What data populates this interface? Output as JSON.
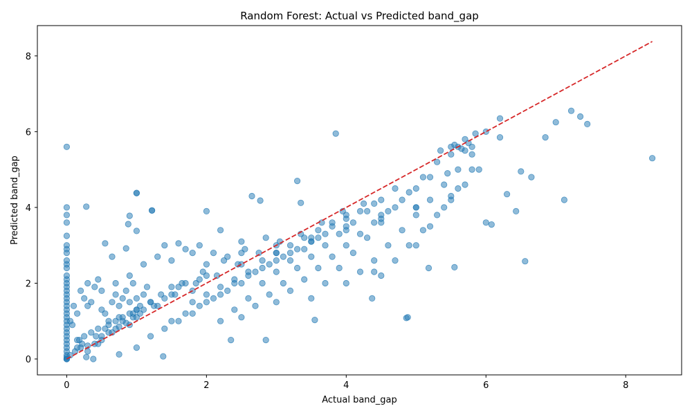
{
  "chart_data": {
    "type": "scatter",
    "title": "Random Forest: Actual vs Predicted band_gap",
    "xlabel": "Actual band_gap",
    "ylabel": "Predicted band_gap",
    "xlim": [
      -0.42,
      8.8
    ],
    "ylim": [
      -0.42,
      8.8
    ],
    "xticks": [
      0,
      2,
      4,
      6,
      8
    ],
    "yticks": [
      0,
      2,
      4,
      6,
      8
    ],
    "grid": false,
    "point_color": "#1f77b4",
    "line_color": "#d62728",
    "reference_line": {
      "x": [
        0,
        8.38
      ],
      "y": [
        0,
        8.38
      ],
      "style": "dashed"
    },
    "series": [
      {
        "x": [
          0,
          0,
          0,
          0,
          0,
          0,
          0,
          0,
          0,
          0,
          0,
          0,
          0,
          0,
          0,
          0,
          0,
          0,
          0,
          0,
          0,
          0,
          0,
          0,
          0,
          0,
          0,
          0,
          0,
          0,
          0,
          0,
          0,
          0,
          0,
          0,
          0,
          0.05,
          0.08,
          0.12,
          0.15,
          0.18,
          0.22,
          0.25,
          0.28,
          0.3,
          0.35,
          0.38,
          0.42,
          0.45,
          0.5,
          0.55,
          0.6,
          0.65,
          0.7,
          0.75,
          0.8,
          0.85,
          0.9,
          0.95,
          1.0,
          0.05,
          0.1,
          0.15,
          0.2,
          0.25,
          0.3,
          0.35,
          0.4,
          0.45,
          0.5,
          0.55,
          0.6,
          0.65,
          0.7,
          0.75,
          0.8,
          0.85,
          0.9,
          0.95,
          1.0,
          1.05,
          1.1,
          1.15,
          1.2,
          0.2,
          0.3,
          0.4,
          0.5,
          0.6,
          0.7,
          0.8,
          0.9,
          1.0,
          1.1,
          1.2,
          1.3,
          1.4,
          1.5,
          1.6,
          1.7,
          1.8,
          1.9,
          0.3,
          0.5,
          0.7,
          0.9,
          1.1,
          1.3,
          1.5,
          1.7,
          1.9,
          2.1,
          2.3,
          2.5,
          0.55,
          0.65,
          0.85,
          1.0,
          1.0,
          1.22,
          0.88,
          1.4,
          1.6,
          1.8,
          2.0,
          2.2,
          1.0,
          1.2,
          1.4,
          1.6,
          1.8,
          2.0,
          2.2,
          2.4,
          2.6,
          2.8,
          3.0,
          3.2,
          1.5,
          1.7,
          1.9,
          2.1,
          2.3,
          2.5,
          2.7,
          2.9,
          3.1,
          3.3,
          3.5,
          3.7,
          1.8,
          2.0,
          2.2,
          2.4,
          2.6,
          2.8,
          3.0,
          3.2,
          3.4,
          3.6,
          3.8,
          4.0,
          2.2,
          2.4,
          2.6,
          2.8,
          3.0,
          3.2,
          3.4,
          3.6,
          3.8,
          4.0,
          4.2,
          4.4,
          2.5,
          2.7,
          2.9,
          3.1,
          3.3,
          3.5,
          3.7,
          3.9,
          4.1,
          4.3,
          4.5,
          4.7,
          3.0,
          3.2,
          3.4,
          3.6,
          3.8,
          4.0,
          4.2,
          4.4,
          4.6,
          4.8,
          5.0,
          5.2,
          3.5,
          3.7,
          3.9,
          4.1,
          4.3,
          4.5,
          4.7,
          4.9,
          5.1,
          5.3,
          5.5,
          5.7,
          4.0,
          4.2,
          4.4,
          4.6,
          4.8,
          5.0,
          5.2,
          5.4,
          5.6,
          5.8,
          4.5,
          4.7,
          4.9,
          5.1,
          5.3,
          5.5,
          5.7,
          5.9,
          5.0,
          5.2,
          5.4,
          5.6,
          5.8,
          6.0,
          6.2,
          5.5,
          5.6,
          5.7,
          5.75,
          5.8,
          5.85,
          5.65,
          5.55,
          5.45,
          5.35,
          6.2,
          6.3,
          6.5,
          6.65,
          6.85,
          7.0,
          7.12,
          7.22,
          7.35,
          7.45,
          8.38,
          6.0,
          6.08,
          6.43,
          6.56,
          5.55,
          5.18,
          4.86,
          4.88,
          3.85,
          3.3,
          2.85,
          2.35,
          0.28,
          1.22,
          0.9,
          1.0,
          2.65,
          2.77,
          3.35,
          4.37,
          4.4,
          3.55,
          0.75,
          1.38,
          2.0,
          2.5,
          3.0,
          3.5,
          4.0,
          4.5,
          5.0,
          5.5,
          1.0,
          1.5,
          2.0,
          2.5,
          3.0,
          3.5,
          4.0,
          4.5,
          5.0,
          0.95,
          1.25,
          1.55,
          1.85,
          2.15,
          2.45,
          2.75,
          3.05,
          3.35,
          3.65,
          3.95,
          4.25,
          0.15,
          0.45,
          0.75,
          1.05,
          1.35,
          1.65,
          1.95,
          2.25,
          2.55,
          2.85
        ],
        "y": [
          0,
          0,
          0,
          0.05,
          0.1,
          0.2,
          0.3,
          0.4,
          0.5,
          0.6,
          0.7,
          0.8,
          0.9,
          1.0,
          1.1,
          1.2,
          1.3,
          1.4,
          1.5,
          1.6,
          1.7,
          1.8,
          1.9,
          2.0,
          2.1,
          2.2,
          2.4,
          2.5,
          2.6,
          2.8,
          2.9,
          3.0,
          3.25,
          3.6,
          3.8,
          4.0,
          5.6,
          0.1,
          0.9,
          0.2,
          0.3,
          0.5,
          0.4,
          0.6,
          0.05,
          0.35,
          0.7,
          0,
          0.6,
          0.4,
          0.5,
          0.8,
          0.9,
          0.7,
          1.0,
          0.85,
          1.1,
          0.95,
          1.2,
          1.1,
          1.3,
          1.0,
          1.4,
          1.2,
          1.8,
          1.6,
          2.0,
          1.5,
          1.9,
          2.1,
          1.3,
          1.2,
          1.0,
          1.5,
          1.7,
          1.4,
          1.6,
          1.8,
          1.5,
          2.0,
          1.3,
          1.2,
          1.7,
          1.9,
          1.5,
          0.3,
          0.2,
          0.4,
          0.6,
          0.7,
          0.8,
          1.0,
          0.9,
          1.1,
          1.3,
          1.5,
          1.4,
          1.6,
          1.7,
          1.9,
          2.0,
          1.8,
          2.1,
          1.4,
          1.8,
          2.0,
          2.2,
          2.5,
          2.7,
          2.6,
          2.9,
          3.0,
          2.8,
          2.7,
          3.1,
          3.05,
          2.7,
          2.92,
          4.38,
          3.38,
          3.92,
          3.56,
          3.0,
          3.05,
          2.8,
          3.9,
          3.4,
          0.3,
          0.6,
          0.8,
          1.0,
          1.2,
          1.5,
          1.7,
          2.0,
          2.2,
          2.4,
          2.6,
          2.8,
          1.0,
          1.2,
          1.4,
          1.6,
          1.8,
          2.0,
          2.3,
          2.5,
          2.7,
          2.9,
          3.1,
          3.3,
          1.5,
          1.7,
          1.9,
          2.1,
          2.3,
          2.6,
          2.8,
          3.0,
          3.2,
          3.4,
          3.6,
          3.8,
          1.0,
          1.3,
          1.6,
          2.0,
          2.3,
          2.6,
          2.9,
          3.2,
          3.5,
          3.7,
          3.9,
          4.1,
          1.1,
          1.4,
          1.7,
          2.0,
          2.4,
          2.7,
          3.0,
          3.3,
          3.6,
          3.9,
          4.2,
          4.5,
          1.5,
          1.8,
          2.1,
          2.4,
          2.7,
          3.0,
          3.3,
          3.6,
          3.9,
          4.2,
          4.5,
          4.8,
          1.6,
          2.0,
          2.4,
          2.8,
          3.2,
          3.6,
          4.0,
          4.4,
          4.8,
          5.2,
          5.6,
          5.8,
          2.0,
          2.3,
          2.6,
          3.0,
          3.4,
          3.8,
          4.2,
          4.6,
          5.0,
          5.4,
          2.2,
          2.6,
          3.0,
          3.4,
          3.8,
          4.2,
          4.6,
          5.0,
          3.0,
          3.5,
          4.0,
          4.5,
          5.0,
          6.0,
          6.35,
          5.4,
          5.6,
          5.5,
          5.7,
          5.6,
          5.95,
          5.55,
          5.65,
          4.9,
          5.5,
          5.85,
          4.35,
          4.95,
          4.8,
          5.85,
          6.25,
          4.2,
          6.55,
          6.4,
          6.2,
          5.3,
          3.6,
          3.55,
          3.9,
          2.58,
          2.42,
          2.4,
          1.08,
          1.1,
          5.95,
          4.7,
          0.5,
          0.5,
          4.02,
          3.92,
          3.78,
          4.38,
          4.3,
          4.18,
          4.12,
          1.6,
          2.3,
          1.03,
          0.12,
          0.07,
          2.5,
          2.8,
          3.0,
          3.2,
          3.5,
          3.8,
          4.0,
          4.3,
          1.6,
          1.9,
          2.2,
          2.5,
          2.8,
          3.1,
          3.4,
          3.7,
          4.0,
          1.2,
          1.4,
          1.7,
          2.0,
          2.2,
          2.5,
          2.8,
          3.1,
          3.3,
          3.6,
          3.9,
          4.1,
          0.5,
          0.8,
          1.1,
          1.4,
          1.7,
          2.0,
          2.3,
          2.6,
          2.9,
          3.2
        ]
      }
    ]
  }
}
